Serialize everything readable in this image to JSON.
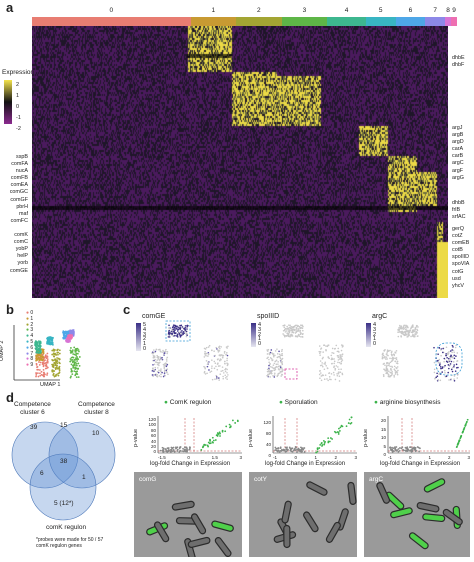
{
  "panel_labels": {
    "a": "a",
    "b": "b",
    "c": "c",
    "d": "d"
  },
  "heatmap": {
    "cluster_labels": [
      "0",
      "1",
      "2",
      "3",
      "4",
      "5",
      "6",
      "7",
      "8",
      "9"
    ],
    "cluster_colors": [
      "#e87d72",
      "#c89a32",
      "#a3a533",
      "#5eb647",
      "#3db78f",
      "#38b5c3",
      "#4ea7e8",
      "#8d88e8",
      "#d774d5",
      "#ee6fb1"
    ],
    "legend_title": "Expression",
    "legend_ticks": [
      "2",
      "1",
      "0",
      "-1",
      "-2"
    ],
    "left_genes": "sspB\ncomFA\nnucA\ncomFB\ncomEA\ncomGC\ncomGF\npbrH\nmaf\ncomFC\n\ncomK\ncomC\nyobP\nhelP\nyorb\ncomGE",
    "right_genes_top": "dhbE\ndhbF",
    "right_genes_mid": "argJ\nargB\nargD\ncarA\ncarB\nargC\nargF\nargG",
    "right_genes_low": "dhbB\nfrlB\nsrfAC",
    "right_genes_bottom": "gerQ\ncotZ\ncomEB\ncotB\nspoIIID\nspoVIA\ncotG\nusd\nyhcV"
  },
  "umap": {
    "cluster_labels": [
      "0",
      "1",
      "2",
      "3",
      "4",
      "5",
      "6",
      "7",
      "8",
      "9"
    ],
    "xlabel": "UMAP 1",
    "ylabel": "UMAP 2"
  },
  "panel_c": {
    "columns": [
      {
        "gene": "comGE",
        "legend_ticks": [
          "5",
          "4",
          "3",
          "2",
          "1",
          "0"
        ],
        "set": "ComK regulon",
        "micro": "comG"
      },
      {
        "gene": "spoIIID",
        "legend_ticks": [
          "4",
          "3",
          "2",
          "1",
          "0"
        ],
        "set": "Sporulation",
        "micro": "cotY"
      },
      {
        "gene": "argC",
        "legend_ticks": [
          "4",
          "3",
          "2",
          "1",
          "0"
        ],
        "set": "arginine biosynthesis",
        "micro": "argC"
      }
    ],
    "volcano_ylabel": "p-value",
    "volcano_xlabel": "log-fold Change in Expression",
    "volcano_yticks": [
      [
        "120",
        "100",
        "80",
        "60",
        "40",
        "20",
        "0"
      ],
      [
        "120",
        "80",
        "40",
        "0"
      ],
      [
        "20",
        "15",
        "10",
        "5",
        "0"
      ]
    ],
    "volcano_xticks": [
      [
        "-1.5",
        "0",
        "1.5",
        "3"
      ],
      [
        "-1",
        "0",
        "1",
        "2",
        "3"
      ],
      [
        "-1",
        "0",
        "1",
        "2",
        "3"
      ]
    ]
  },
  "venn": {
    "set_a": "Competence\ncluster 6",
    "set_b": "Competence\ncluster 8",
    "set_c": "comK regulon",
    "regions": {
      "a_only": "39",
      "ab": "15",
      "b_only": "10",
      "ac": "6",
      "abc": "38",
      "bc": "1",
      "c_only": "5 (12*)"
    },
    "footnote": "*probes were made for 50 / 57\ncomK regulon genes"
  },
  "colors": {
    "accent_green": "#3bb34a",
    "low": "#8b2a8f",
    "mid": "#111111",
    "high": "#f4e44c"
  }
}
